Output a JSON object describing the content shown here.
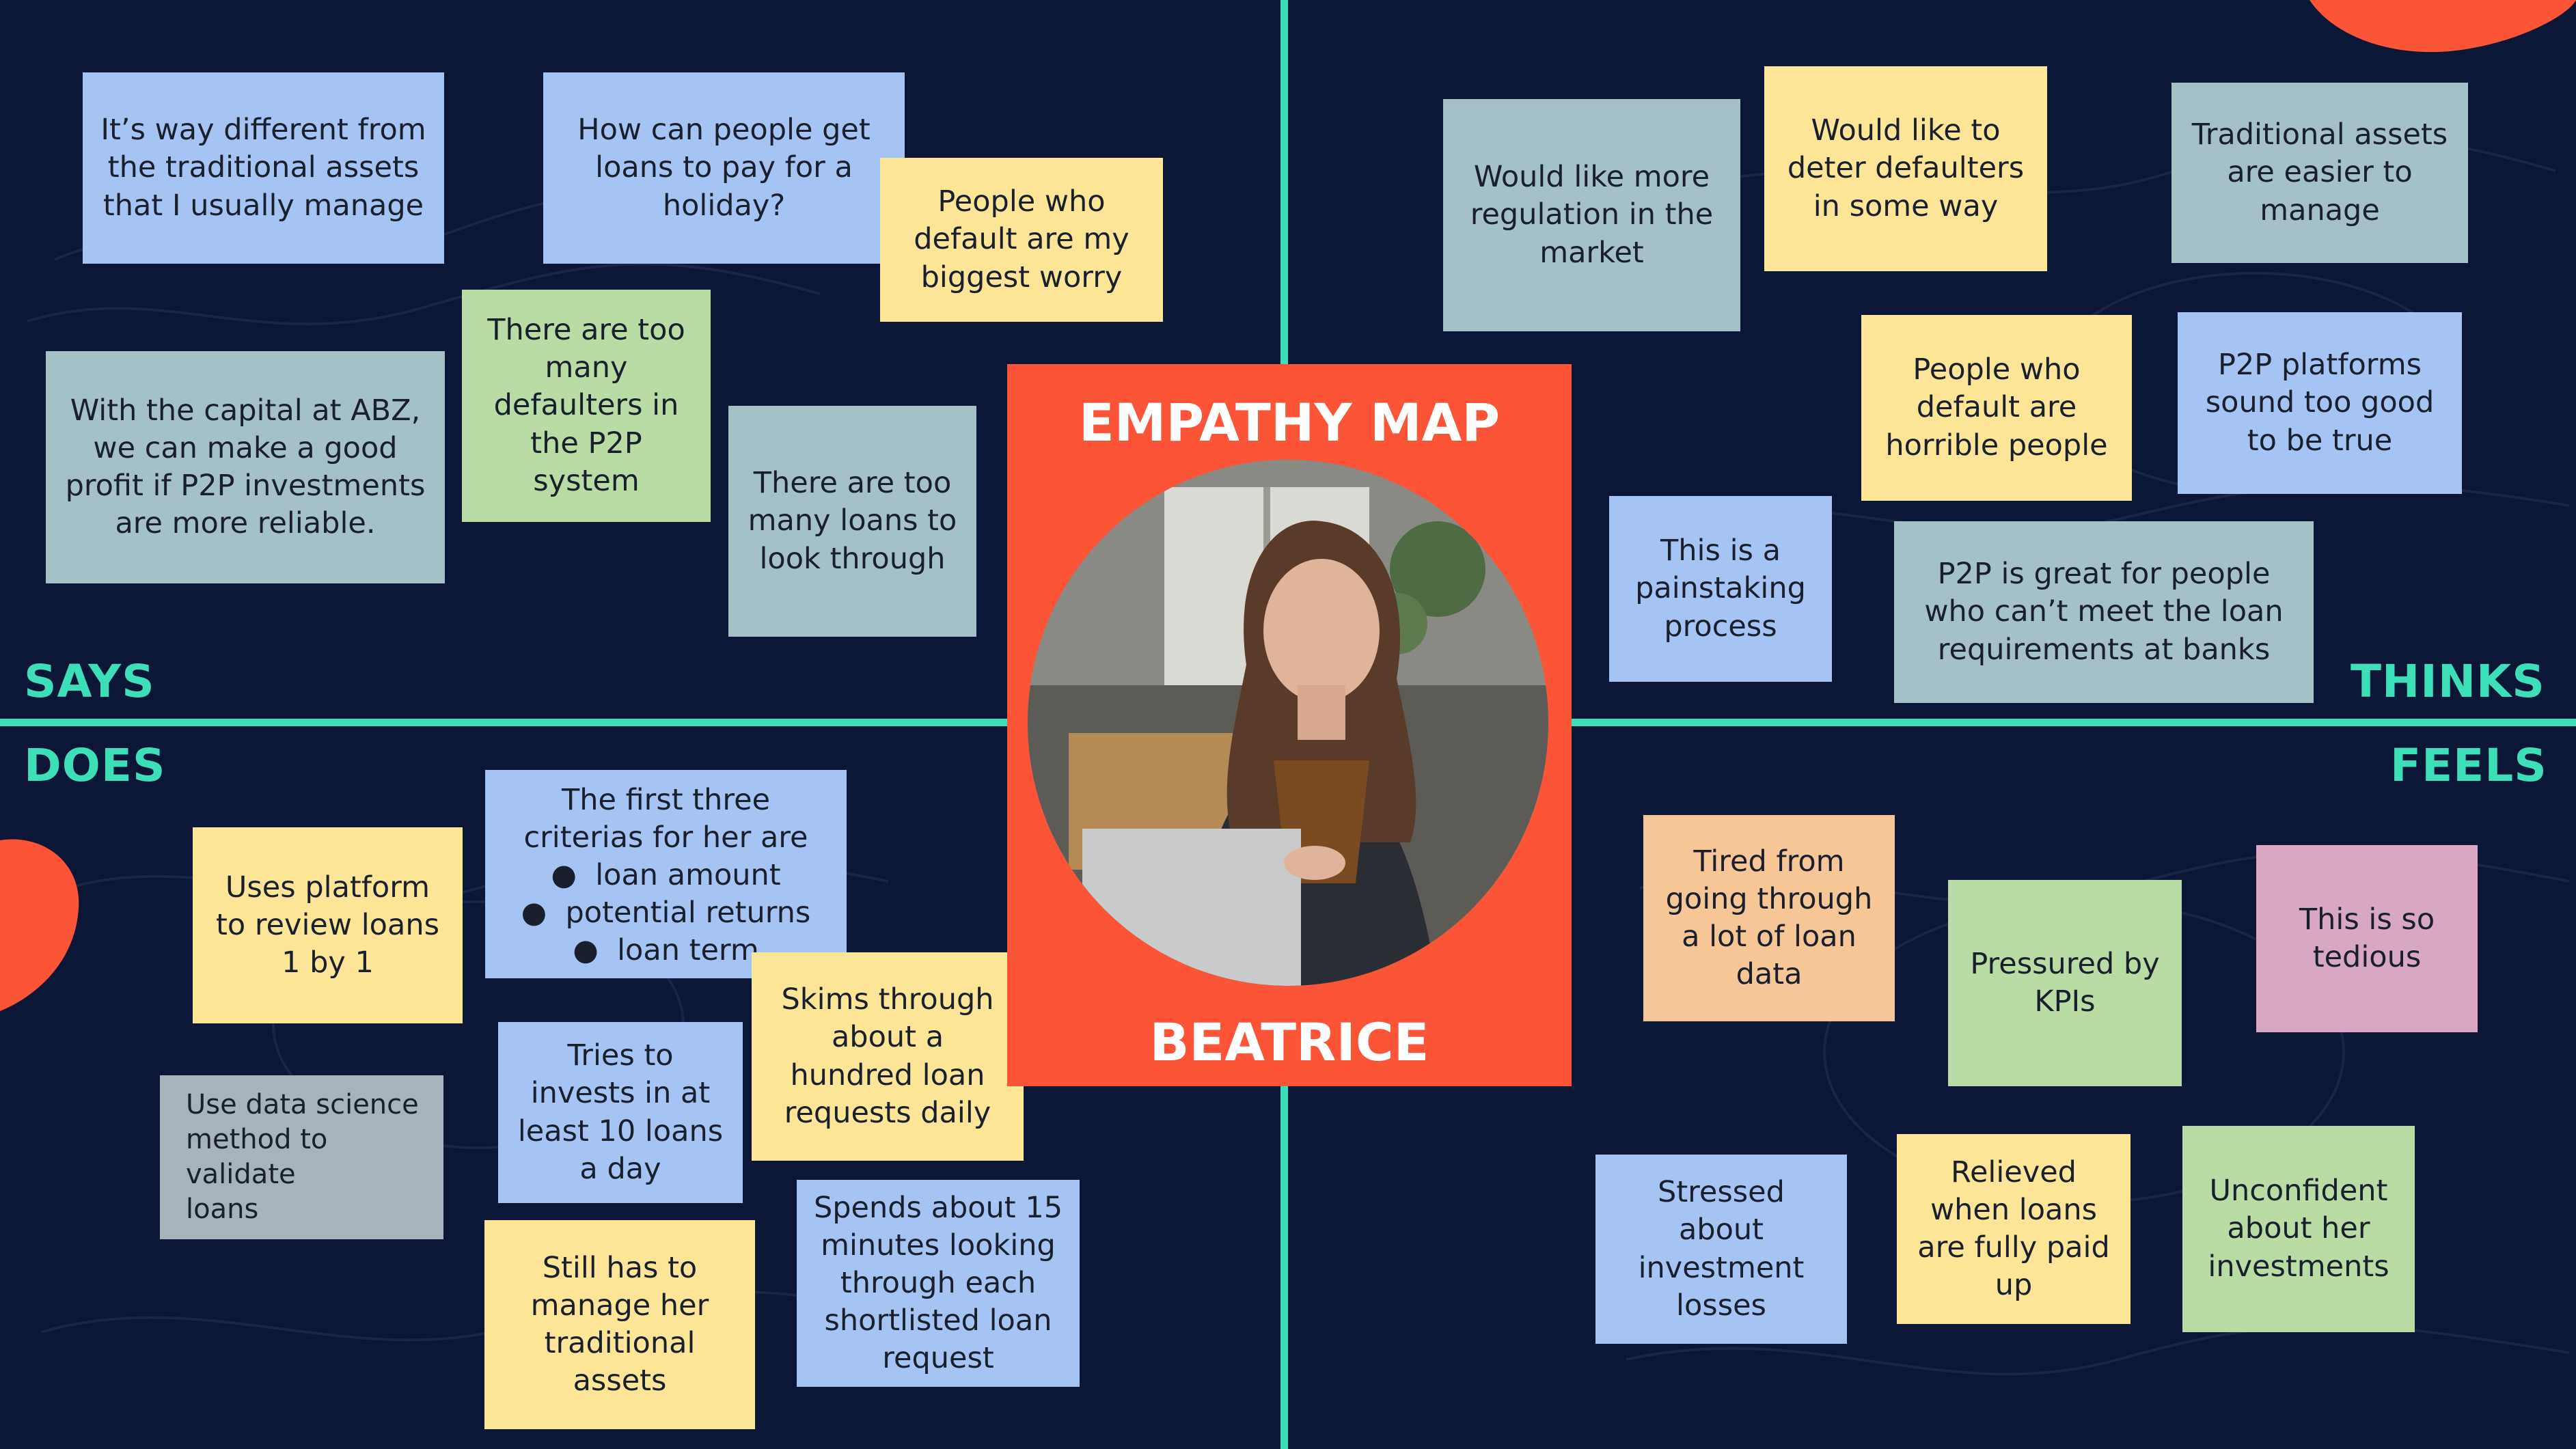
{
  "title": "EMPATHY MAP",
  "persona": {
    "name": "BEATRICE"
  },
  "quadrants": {
    "says": "SAYS",
    "thinks": "THINKS",
    "does": "DOES",
    "feels": "FEELS"
  },
  "colors": {
    "background": "#0c1637",
    "divider": "#3ddfb8",
    "accent": "#fb5436",
    "note_blue": "#a5c3f3",
    "note_yellow": "#fde597",
    "note_teal": "#a3c1c7",
    "note_green": "#b8dca4",
    "note_peach": "#f6c696",
    "note_pink": "#d8a7c1",
    "note_gray": "#a6b3bb"
  },
  "says": {
    "notes": [
      "It’s way different from\nthe traditional assets\nthat I usually manage",
      "How can people get\nloans to pay for a\nholiday?",
      "People who\ndefault are my\nbiggest worry",
      "There are too\nmany\ndefaulters in\nthe P2P\nsystem",
      "With the capital at ABZ,\nwe can make a good\nprofit if P2P investments\nare more reliable.",
      "There are too\nmany loans to\nlook through"
    ]
  },
  "thinks": {
    "notes": [
      "Would like more\nregulation in the\nmarket",
      "Would like to\ndeter defaulters\nin some way",
      "Traditional assets\nare easier to\nmanage",
      "People who\ndefault are\nhorrible people",
      "P2P platforms\nsound too good\nto be true",
      "This is a\npainstaking\nprocess",
      "P2P is great for people\nwho can’t meet the loan\nrequirements at banks"
    ]
  },
  "does": {
    "criteria_heading": "The first three\ncriterias for her are",
    "criteria": [
      "loan amount",
      "potential returns",
      "loan term"
    ],
    "notes": [
      "Uses platform\nto review loans\n1 by 1",
      "Skims through\nabout a\nhundred loan\nrequests daily",
      "Tries to\ninvests in at\nleast 10 loans\na day",
      "Use data science\nmethod to validate\nloans",
      "Still has to\nmanage her\ntraditional\nassets",
      "Spends about 15\nminutes looking\nthrough each\nshortlisted loan\nrequest"
    ]
  },
  "feels": {
    "notes": [
      "Tired from\ngoing through\na lot of loan\ndata",
      "Pressured by\nKPIs",
      "This is so\ntedious",
      "Stressed\nabout\ninvestment\nlosses",
      "Relieved\nwhen loans\nare fully paid\nup",
      "Unconfident\nabout her\ninvestments"
    ]
  }
}
